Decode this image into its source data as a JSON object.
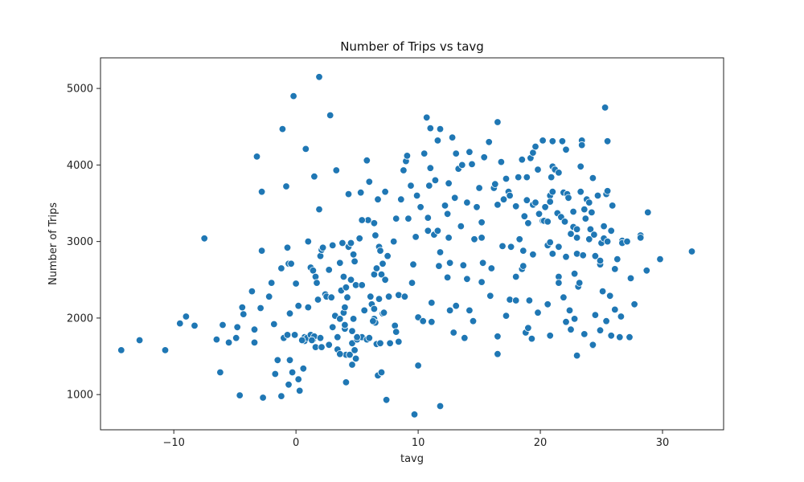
{
  "chart_data": {
    "type": "scatter",
    "title": "Number of Trips vs tavg",
    "xlabel": "tavg",
    "ylabel": "Number of Trips",
    "xlim": [
      -16,
      35
    ],
    "ylim": [
      540,
      5400
    ],
    "xticks": [
      -10,
      0,
      10,
      20,
      30
    ],
    "yticks": [
      1000,
      2000,
      3000,
      4000,
      5000
    ],
    "grid": false,
    "marker_color": "#1f77b4",
    "points": [
      [
        -14.3,
        1580
      ],
      [
        -12.8,
        1710
      ],
      [
        -10.7,
        1580
      ],
      [
        -9.5,
        1930
      ],
      [
        -7.5,
        3040
      ],
      [
        -6.2,
        1290
      ],
      [
        -6.0,
        1910
      ],
      [
        -5.5,
        1680
      ],
      [
        -4.9,
        1740
      ],
      [
        -4.6,
        990
      ],
      [
        -4.4,
        2140
      ],
      [
        -4.3,
        2050
      ],
      [
        -3.4,
        1850
      ],
      [
        -3.4,
        1680
      ],
      [
        -3.2,
        4110
      ],
      [
        -2.9,
        2130
      ],
      [
        -2.8,
        3650
      ],
      [
        -2.8,
        2880
      ],
      [
        -2.7,
        960
      ],
      [
        -2.2,
        2280
      ],
      [
        -1.8,
        1920
      ],
      [
        -1.7,
        1270
      ],
      [
        -1.5,
        1450
      ],
      [
        -1.2,
        980
      ],
      [
        -1.1,
        4470
      ],
      [
        -1.0,
        1740
      ],
      [
        -0.6,
        1130
      ],
      [
        -0.5,
        1450
      ],
      [
        -0.3,
        1290
      ],
      [
        -0.7,
        1780
      ],
      [
        -0.5,
        2060
      ],
      [
        -0.7,
        2920
      ],
      [
        -0.6,
        2710
      ],
      [
        -0.4,
        2710
      ],
      [
        -0.2,
        4900
      ],
      [
        -0.1,
        1780
      ],
      [
        0.2,
        1200
      ],
      [
        0.3,
        1050
      ],
      [
        0.2,
        2160
      ],
      [
        0.6,
        1340
      ],
      [
        0.7,
        1750
      ],
      [
        0.7,
        1700
      ],
      [
        0.9,
        1740
      ],
      [
        1.0,
        2140
      ],
      [
        1.2,
        1780
      ],
      [
        1.2,
        2660
      ],
      [
        1.4,
        2620
      ],
      [
        1.4,
        1720
      ],
      [
        1.5,
        1760
      ],
      [
        1.6,
        1620
      ],
      [
        1.6,
        2540
      ],
      [
        1.7,
        2460
      ],
      [
        1.8,
        2240
      ],
      [
        1.9,
        5150
      ],
      [
        1.9,
        3420
      ],
      [
        2.0,
        1740
      ],
      [
        2.0,
        2810
      ],
      [
        2.1,
        2890
      ],
      [
        2.1,
        1620
      ],
      [
        2.4,
        2310
      ],
      [
        2.5,
        2280
      ],
      [
        2.7,
        2630
      ],
      [
        2.9,
        2270
      ],
      [
        3.0,
        2950
      ],
      [
        3.2,
        2030
      ],
      [
        3.4,
        1750
      ],
      [
        3.4,
        1590
      ],
      [
        3.3,
        3930
      ],
      [
        3.6,
        2720
      ],
      [
        3.6,
        1990
      ],
      [
        3.7,
        2360
      ],
      [
        3.8,
        2980
      ],
      [
        3.9,
        2540
      ],
      [
        3.9,
        2070
      ],
      [
        4.0,
        2140
      ],
      [
        4.0,
        1860
      ],
      [
        4.1,
        1520
      ],
      [
        4.1,
        1160
      ],
      [
        4.1,
        2400
      ],
      [
        4.3,
        3620
      ],
      [
        4.3,
        2930
      ],
      [
        4.4,
        1520
      ],
      [
        4.5,
        2500
      ],
      [
        4.5,
        2980
      ],
      [
        4.6,
        1830
      ],
      [
        4.6,
        1670
      ],
      [
        4.6,
        1390
      ],
      [
        4.7,
        2830
      ],
      [
        4.7,
        1990
      ],
      [
        4.8,
        2740
      ],
      [
        4.8,
        1580
      ],
      [
        4.9,
        1470
      ],
      [
        4.9,
        2430
      ],
      [
        5.0,
        1720
      ],
      [
        5.2,
        3040
      ],
      [
        5.3,
        3640
      ],
      [
        5.4,
        2430
      ],
      [
        5.4,
        1750
      ],
      [
        5.6,
        2100
      ],
      [
        5.8,
        4060
      ],
      [
        5.8,
        1720
      ],
      [
        5.9,
        3280
      ],
      [
        6.0,
        3780
      ],
      [
        6.0,
        1740
      ],
      [
        6.1,
        2280
      ],
      [
        6.2,
        2180
      ],
      [
        6.4,
        3240
      ],
      [
        6.4,
        2570
      ],
      [
        6.4,
        2120
      ],
      [
        6.4,
        1990
      ],
      [
        6.5,
        3080
      ],
      [
        6.5,
        1940
      ],
      [
        6.6,
        2650
      ],
      [
        6.6,
        1660
      ],
      [
        6.7,
        1250
      ],
      [
        6.8,
        2250
      ],
      [
        6.8,
        2930
      ],
      [
        6.9,
        2880
      ],
      [
        6.9,
        1670
      ],
      [
        7.0,
        1290
      ],
      [
        7.0,
        2570
      ],
      [
        7.1,
        2710
      ],
      [
        7.1,
        2060
      ],
      [
        7.3,
        3650
      ],
      [
        7.3,
        2500
      ],
      [
        7.4,
        930
      ],
      [
        7.6,
        2280
      ],
      [
        7.7,
        1670
      ],
      [
        8.0,
        3000
      ],
      [
        8.1,
        1900
      ],
      [
        8.2,
        1820
      ],
      [
        8.2,
        3300
      ],
      [
        8.4,
        2300
      ],
      [
        8.6,
        3550
      ],
      [
        8.8,
        3930
      ],
      [
        9.0,
        4050
      ],
      [
        9.1,
        4120
      ],
      [
        9.2,
        3300
      ],
      [
        9.4,
        3730
      ],
      [
        9.6,
        2700
      ],
      [
        9.7,
        740
      ],
      [
        9.9,
        3600
      ],
      [
        10.0,
        2010
      ],
      [
        10.0,
        1380
      ],
      [
        10.2,
        3450
      ],
      [
        10.5,
        4150
      ],
      [
        10.7,
        4620
      ],
      [
        10.8,
        3310
      ],
      [
        10.8,
        3140
      ],
      [
        10.9,
        3730
      ],
      [
        11.0,
        3960
      ],
      [
        11.1,
        2200
      ],
      [
        11.1,
        1950
      ],
      [
        11.3,
        3090
      ],
      [
        11.4,
        3800
      ],
      [
        11.6,
        4320
      ],
      [
        11.6,
        3140
      ],
      [
        11.7,
        2680
      ],
      [
        11.8,
        4470
      ],
      [
        11.8,
        850
      ],
      [
        12.2,
        3470
      ],
      [
        12.4,
        3360
      ],
      [
        12.4,
        2530
      ],
      [
        12.5,
        3050
      ],
      [
        12.6,
        2720
      ],
      [
        12.6,
        2100
      ],
      [
        12.8,
        4360
      ],
      [
        13.0,
        3570
      ],
      [
        13.1,
        4150
      ],
      [
        13.1,
        2160
      ],
      [
        13.3,
        3950
      ],
      [
        13.5,
        3200
      ],
      [
        13.6,
        4000
      ],
      [
        14.0,
        3510
      ],
      [
        14.0,
        2510
      ],
      [
        14.2,
        4170
      ],
      [
        14.2,
        2100
      ],
      [
        14.4,
        4010
      ],
      [
        14.6,
        3030
      ],
      [
        14.8,
        3450
      ],
      [
        15.0,
        3700
      ],
      [
        15.2,
        3050
      ],
      [
        15.2,
        3250
      ],
      [
        15.3,
        2720
      ],
      [
        15.4,
        4100
      ],
      [
        15.8,
        4300
      ],
      [
        16.2,
        3700
      ],
      [
        16.3,
        3750
      ],
      [
        16.5,
        4560
      ],
      [
        16.5,
        3480
      ],
      [
        16.5,
        1530
      ],
      [
        16.5,
        1760
      ],
      [
        16.8,
        4040
      ],
      [
        17.0,
        3550
      ],
      [
        17.2,
        3820
      ],
      [
        17.4,
        3650
      ],
      [
        17.5,
        3600
      ],
      [
        17.5,
        2240
      ],
      [
        18.0,
        3460
      ],
      [
        18.2,
        3840
      ],
      [
        18.3,
        3030
      ],
      [
        18.5,
        4070
      ],
      [
        18.5,
        2640
      ],
      [
        18.6,
        2880
      ],
      [
        18.6,
        2680
      ],
      [
        18.7,
        3330
      ],
      [
        18.8,
        1810
      ],
      [
        18.9,
        3540
      ],
      [
        18.9,
        3840
      ],
      [
        19.0,
        1870
      ],
      [
        19.1,
        2230
      ],
      [
        19.2,
        4090
      ],
      [
        19.3,
        1730
      ],
      [
        19.4,
        4160
      ],
      [
        19.4,
        3480
      ],
      [
        19.6,
        4240
      ],
      [
        19.6,
        3510
      ],
      [
        19.8,
        3940
      ],
      [
        19.9,
        3360
      ],
      [
        20.2,
        4320
      ],
      [
        20.2,
        3270
      ],
      [
        20.3,
        3270
      ],
      [
        20.4,
        3450
      ],
      [
        20.6,
        3260
      ],
      [
        20.6,
        2950
      ],
      [
        20.8,
        3600
      ],
      [
        20.8,
        2990
      ],
      [
        20.8,
        1770
      ],
      [
        20.9,
        3840
      ],
      [
        21.0,
        4310
      ],
      [
        21.0,
        3980
      ],
      [
        21.0,
        2840
      ],
      [
        21.2,
        3940
      ],
      [
        21.4,
        3370
      ],
      [
        21.5,
        2930
      ],
      [
        21.5,
        2540
      ],
      [
        21.5,
        2460
      ],
      [
        21.5,
        3900
      ],
      [
        21.7,
        3320
      ],
      [
        21.8,
        4310
      ],
      [
        21.9,
        3640
      ],
      [
        22.0,
        3260
      ],
      [
        22.1,
        2800
      ],
      [
        22.1,
        1950
      ],
      [
        22.2,
        3620
      ],
      [
        22.3,
        3570
      ],
      [
        22.4,
        2100
      ],
      [
        22.5,
        1850
      ],
      [
        22.5,
        3100
      ],
      [
        22.7,
        3390
      ],
      [
        22.7,
        3190
      ],
      [
        22.8,
        2580
      ],
      [
        23.0,
        3160
      ],
      [
        23.0,
        3050
      ],
      [
        23.0,
        2840
      ],
      [
        23.1,
        2410
      ],
      [
        23.2,
        2460
      ],
      [
        23.3,
        3980
      ],
      [
        23.3,
        3650
      ],
      [
        23.4,
        4320
      ],
      [
        23.4,
        4260
      ],
      [
        23.5,
        2820
      ],
      [
        23.6,
        3420
      ],
      [
        23.7,
        3300
      ],
      [
        23.8,
        3550
      ],
      [
        24.0,
        3510
      ],
      [
        24.0,
        3030
      ],
      [
        24.1,
        3160
      ],
      [
        24.2,
        3380
      ],
      [
        24.3,
        3830
      ],
      [
        24.4,
        3090
      ],
      [
        24.5,
        2810
      ],
      [
        24.5,
        2040
      ],
      [
        24.7,
        3600
      ],
      [
        24.9,
        2700
      ],
      [
        24.9,
        2750
      ],
      [
        25.0,
        2980
      ],
      [
        25.1,
        2350
      ],
      [
        25.2,
        3040
      ],
      [
        25.2,
        3200
      ],
      [
        25.3,
        4750
      ],
      [
        25.4,
        3620
      ],
      [
        25.4,
        1960
      ],
      [
        25.5,
        3660
      ],
      [
        25.5,
        3000
      ],
      [
        25.5,
        4310
      ],
      [
        25.7,
        2290
      ],
      [
        25.8,
        3140
      ],
      [
        25.9,
        3470
      ],
      [
        26.1,
        2640
      ],
      [
        26.3,
        2770
      ],
      [
        26.5,
        1750
      ],
      [
        26.7,
        3010
      ],
      [
        26.7,
        2980
      ],
      [
        27.1,
        3000
      ],
      [
        27.3,
        1750
      ],
      [
        27.7,
        2180
      ],
      [
        28.2,
        3080
      ],
      [
        28.2,
        3050
      ],
      [
        28.7,
        2620
      ],
      [
        28.8,
        3380
      ],
      [
        29.8,
        2770
      ],
      [
        32.4,
        2870
      ],
      [
        0.5,
        1710
      ],
      [
        1.3,
        1710
      ],
      [
        2.7,
        1650
      ],
      [
        3.6,
        1530
      ],
      [
        4.0,
        1910
      ],
      [
        5.0,
        1750
      ],
      [
        6.3,
        1960
      ],
      [
        7.2,
        2070
      ],
      [
        8.4,
        1690
      ],
      [
        9.5,
        2460
      ],
      [
        10.4,
        1960
      ],
      [
        11.8,
        2860
      ],
      [
        12.9,
        1810
      ],
      [
        13.8,
        1740
      ],
      [
        14.5,
        1960
      ],
      [
        15.9,
        2290
      ],
      [
        17.2,
        2030
      ],
      [
        18.0,
        2230
      ],
      [
        19.8,
        2070
      ],
      [
        20.6,
        2180
      ],
      [
        21.9,
        2270
      ],
      [
        22.8,
        1990
      ],
      [
        23.6,
        1790
      ],
      [
        24.3,
        1640
      ],
      [
        25.8,
        1770
      ],
      [
        26.6,
        2020
      ],
      [
        27.4,
        2520
      ],
      [
        22.1,
        4200
      ],
      [
        20.8,
        3520
      ],
      [
        19.0,
        3240
      ],
      [
        17.6,
        2930
      ],
      [
        16.0,
        2650
      ],
      [
        15.2,
        2470
      ],
      [
        13.7,
        2690
      ],
      [
        12.5,
        3760
      ],
      [
        11.0,
        4480
      ],
      [
        9.8,
        3060
      ],
      [
        8.9,
        2280
      ],
      [
        7.5,
        2810
      ],
      [
        6.7,
        3550
      ],
      [
        5.4,
        3280
      ],
      [
        4.2,
        2270
      ],
      [
        3.0,
        1880
      ],
      [
        2.2,
        2920
      ],
      [
        1.0,
        3000
      ],
      [
        0.0,
        2450
      ],
      [
        -1.2,
        2650
      ],
      [
        -2.0,
        2460
      ],
      [
        -3.6,
        2350
      ],
      [
        -4.8,
        1880
      ],
      [
        -6.5,
        1720
      ],
      [
        -8.3,
        1900
      ],
      [
        -9.0,
        2020
      ],
      [
        2.8,
        4650
      ],
      [
        1.5,
        3850
      ],
      [
        0.8,
        4210
      ],
      [
        -0.8,
        3720
      ],
      [
        24.9,
        1840
      ],
      [
        26.1,
        2110
      ],
      [
        23.0,
        1510
      ],
      [
        24.3,
        1650
      ],
      [
        21.0,
        3650
      ],
      [
        19.4,
        2830
      ],
      [
        18.0,
        2540
      ],
      [
        16.9,
        2940
      ]
    ]
  }
}
